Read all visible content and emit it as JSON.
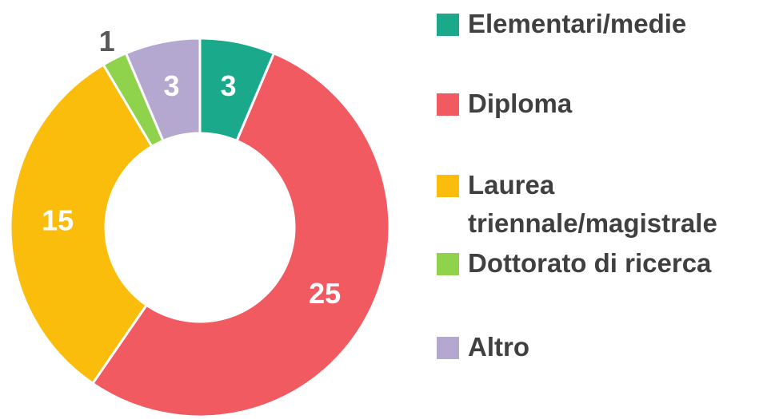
{
  "chart_data": {
    "type": "donut",
    "categories": [
      "Elementari/medie",
      "Diploma",
      "Laurea triennale/magistrale",
      "Dottorato di ricerca",
      "Altro"
    ],
    "values": [
      3,
      25,
      15,
      1,
      3
    ],
    "colors": [
      "#1aa98b",
      "#f25a61",
      "#fbbd0c",
      "#8fd24b",
      "#b4a7d0"
    ],
    "legend": "right"
  }
}
